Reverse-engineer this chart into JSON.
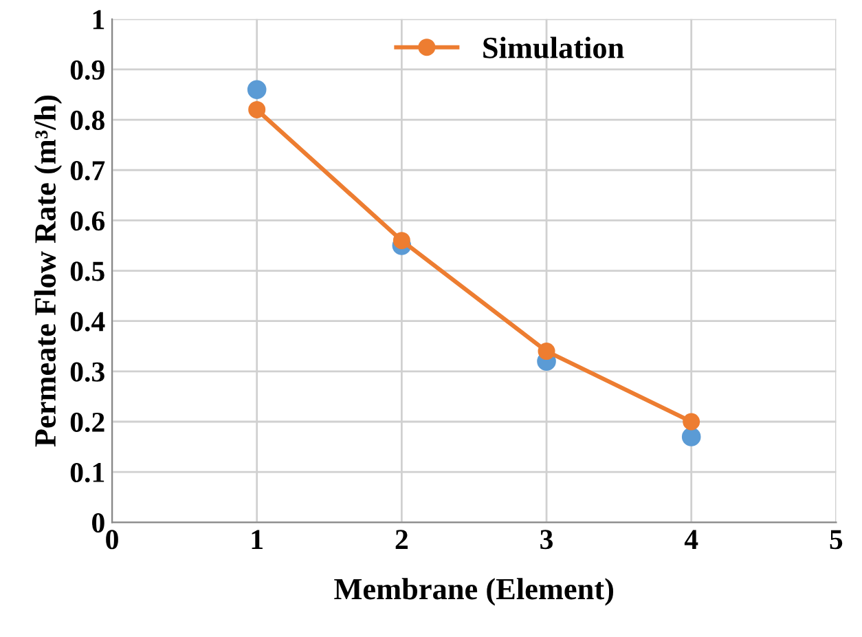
{
  "chart_data": {
    "type": "line",
    "xlabel": "Membrane (Element)",
    "ylabel": "Permeate Flow Rate (m³/h)",
    "x": [
      1,
      2,
      3,
      4
    ],
    "series": [
      {
        "type": "scatter",
        "color": "#5b9bd5",
        "values": [
          0.86,
          0.55,
          0.32,
          0.17
        ]
      },
      {
        "name": "Simulation",
        "color": "#ed7d31",
        "values": [
          0.82,
          0.56,
          0.34,
          0.2
        ]
      }
    ],
    "xlim": [
      0,
      5
    ],
    "xticks": [
      0,
      1,
      2,
      3,
      4,
      5
    ],
    "ylim": [
      0,
      1
    ],
    "yticks": [
      0,
      0.1,
      0.2,
      0.3,
      0.4,
      0.5,
      0.6,
      0.7,
      0.8,
      0.9,
      1
    ],
    "grid": true,
    "legend": "top",
    "marker": "circle"
  }
}
